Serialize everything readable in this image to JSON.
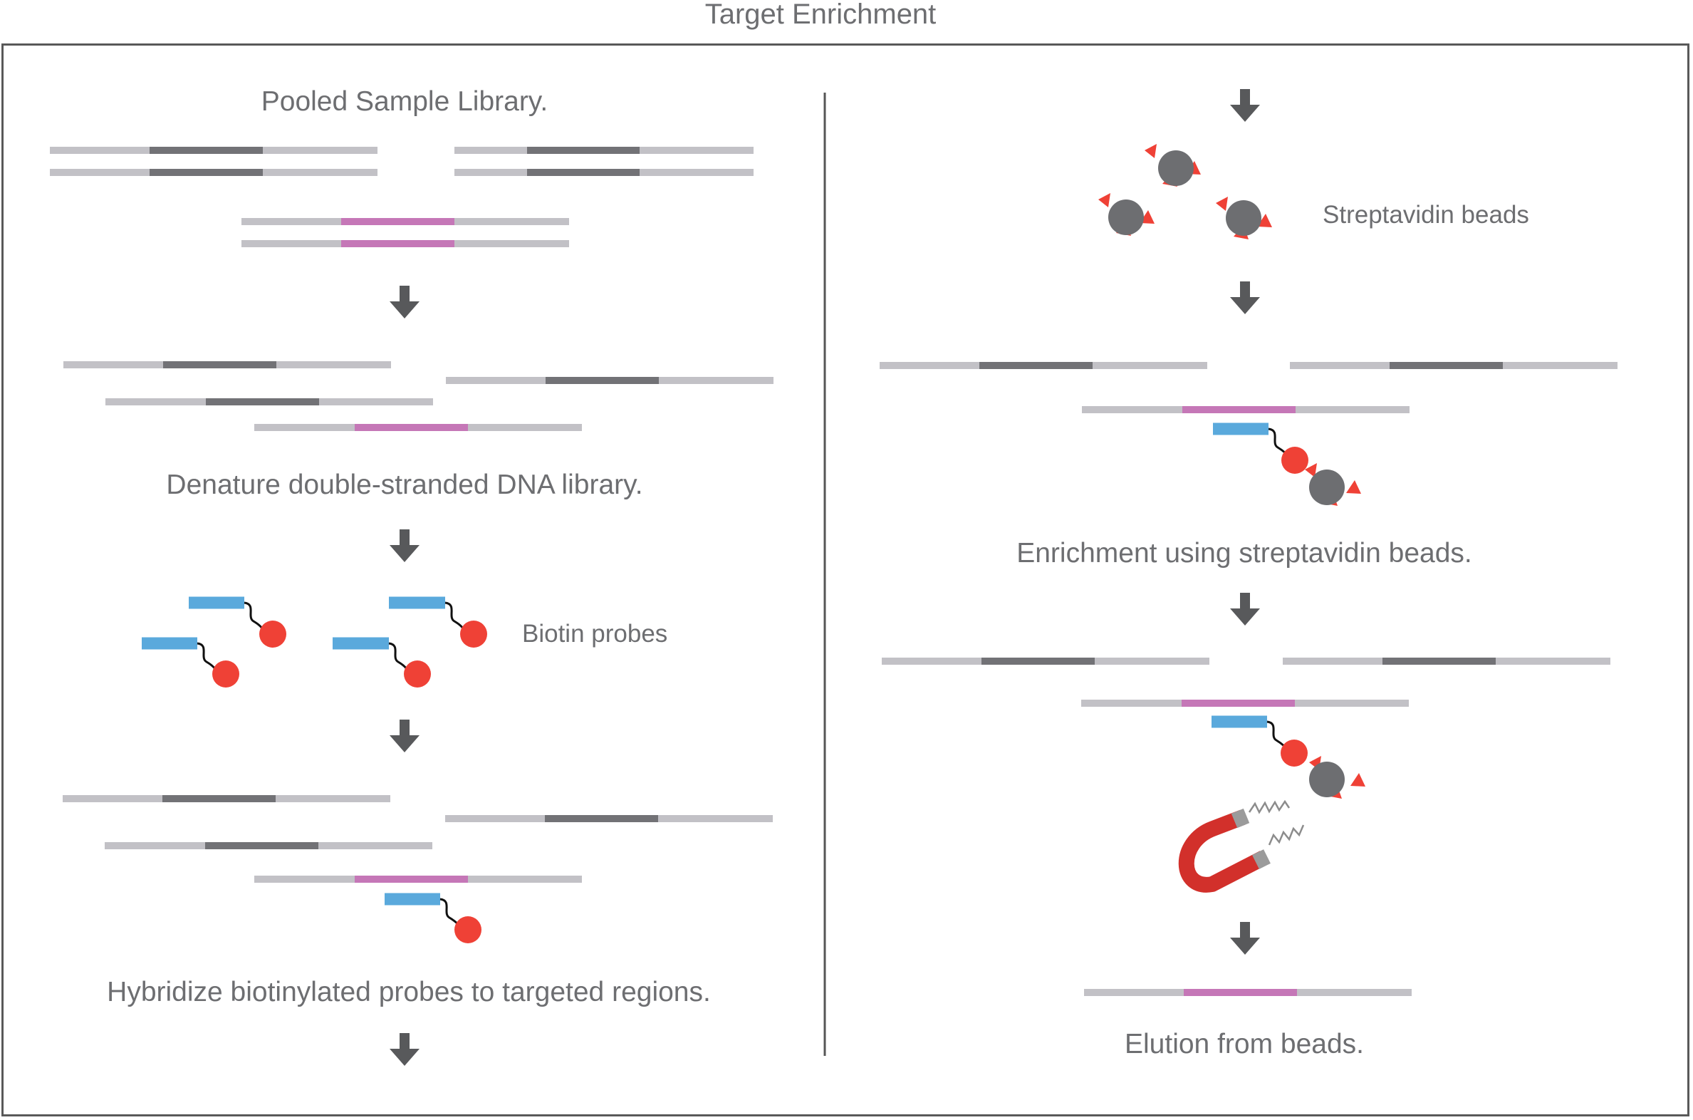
{
  "title": "Target Enrichment",
  "left_panel": {
    "step1": "Pooled Sample Library.",
    "step2": "Denature double-stranded DNA library.",
    "probes_label": "Biotin probes",
    "step3": "Hybridize biotinylated probes to targeted regions."
  },
  "right_panel": {
    "beads_label": "Streptavidin beads",
    "step4": "Enrichment using streptavidin beads.",
    "step5": "Elution from beads."
  },
  "colors": {
    "strand": "#c2c1c6",
    "insert": "#727276",
    "target": "#c577b7",
    "probe": "#5aa9dc",
    "biotin": "#ef4136",
    "bead": "#6d6e71",
    "arrow": "#58595b",
    "text": "#6d6e71",
    "magnet": "#d2302b"
  }
}
